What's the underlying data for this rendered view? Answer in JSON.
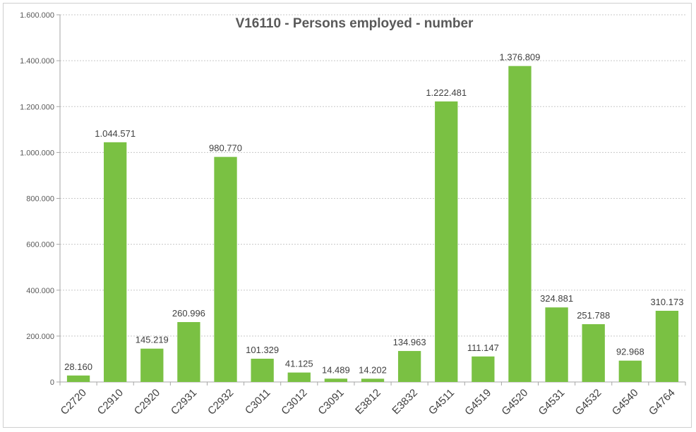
{
  "chart_data": {
    "type": "bar",
    "title": "V16110 - Persons employed - number",
    "xlabel": "",
    "ylabel": "",
    "categories": [
      "C2720",
      "C2910",
      "C2920",
      "C2931",
      "C2932",
      "C3011",
      "C3012",
      "C3091",
      "E3812",
      "E3832",
      "G4511",
      "G4519",
      "G4520",
      "G4531",
      "G4532",
      "G4540",
      "G4764"
    ],
    "values": [
      28160,
      1044571,
      145219,
      260996,
      980770,
      101329,
      41125,
      14489,
      14202,
      134963,
      1222481,
      111147,
      1376809,
      324881,
      251788,
      92968,
      310173
    ],
    "value_labels": [
      "28.160",
      "1.044.571",
      "145.219",
      "260.996",
      "980.770",
      "101.329",
      "41.125",
      "14.489",
      "14.202",
      "134.963",
      "1.222.481",
      "111.147",
      "1.376.809",
      "324.881",
      "251.788",
      "92.968",
      "310.173"
    ],
    "ylim": [
      0,
      1600000
    ],
    "yticks": [
      0,
      200000,
      400000,
      600000,
      800000,
      1000000,
      1200000,
      1400000,
      1600000
    ],
    "ytick_labels": [
      "0",
      "200.000",
      "400.000",
      "600.000",
      "800.000",
      "1.000.000",
      "1.200.000",
      "1.400.000",
      "1.600.000"
    ],
    "grid": true,
    "legend": false,
    "bar_color": "#7ac143"
  }
}
